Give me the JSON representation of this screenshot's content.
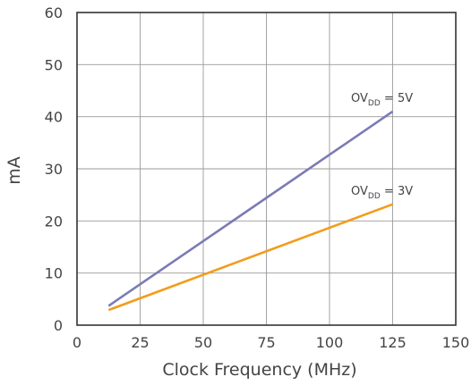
{
  "chart_data": {
    "type": "line",
    "xlabel": "Clock Frequency (MHz)",
    "ylabel": "mA",
    "xlim": [
      0,
      150
    ],
    "ylim": [
      0,
      60
    ],
    "xticks": [
      "0",
      "25",
      "50",
      "75",
      "100",
      "125",
      "150"
    ],
    "yticks": [
      "0",
      "10",
      "20",
      "30",
      "40",
      "50",
      "60"
    ],
    "grid": true,
    "series": [
      {
        "name": "OVDD = 5V",
        "label_main": "OV",
        "label_sub": "DD",
        "label_rest": " = 5V",
        "color": "#7b7bb5",
        "x": [
          12.5,
          125
        ],
        "y": [
          3.7,
          41
        ]
      },
      {
        "name": "OVDD = 3V",
        "label_main": "OV",
        "label_sub": "DD",
        "label_rest": " = 3V",
        "color": "#f39c1b",
        "x": [
          12.5,
          125
        ],
        "y": [
          2.9,
          23.2
        ]
      }
    ]
  }
}
